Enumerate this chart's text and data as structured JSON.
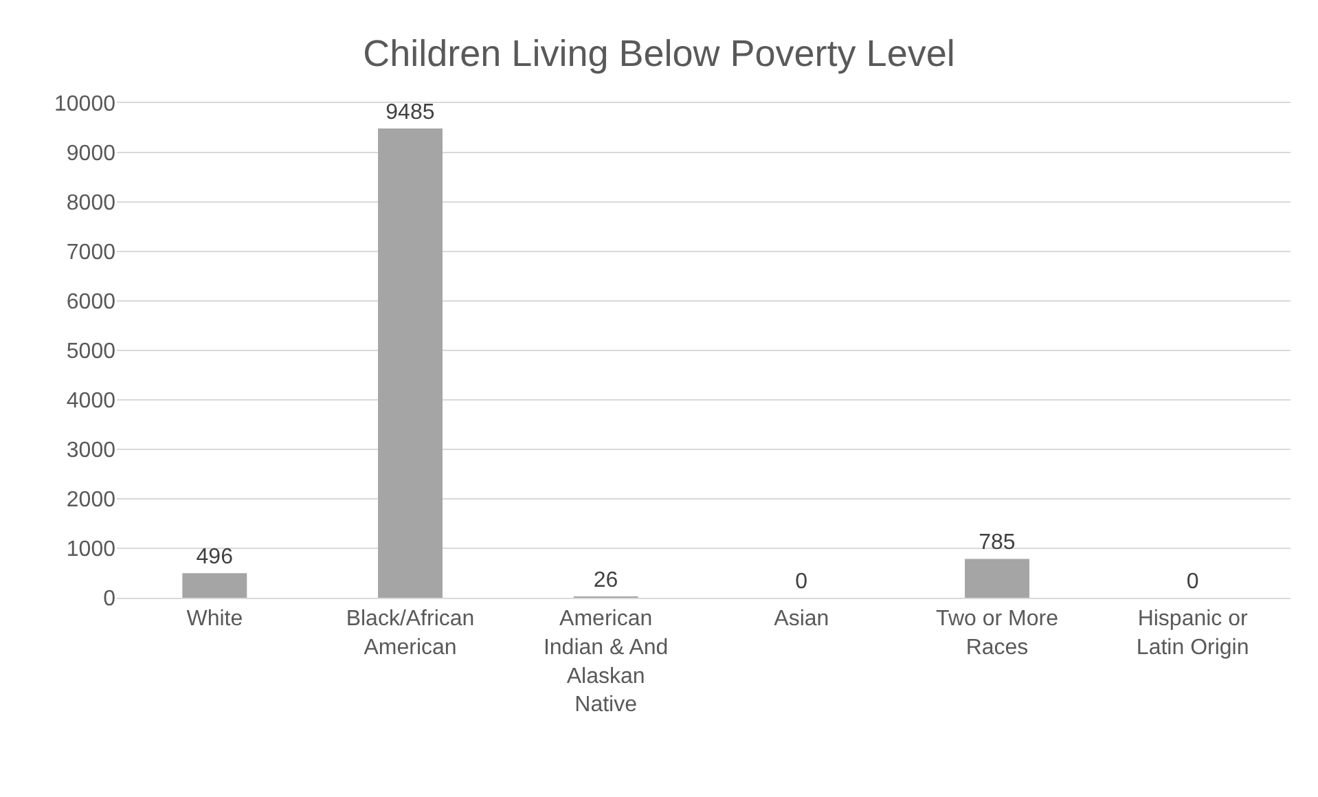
{
  "chart_data": {
    "type": "bar",
    "title": "Children Living Below Poverty Level",
    "categories": [
      "White",
      "Black/African American",
      "American Indian & And Alaskan Native",
      "Asian",
      "Two or More Races",
      "Hispanic or Latin Origin"
    ],
    "values": [
      496,
      9485,
      26,
      0,
      785,
      0
    ],
    "color": "#a5a5a5",
    "ylim": [
      0,
      10000
    ],
    "yticks": [
      0,
      1000,
      2000,
      3000,
      4000,
      5000,
      6000,
      7000,
      8000,
      9000,
      10000
    ],
    "grid": "y",
    "data_labels": true,
    "legend": false
  }
}
